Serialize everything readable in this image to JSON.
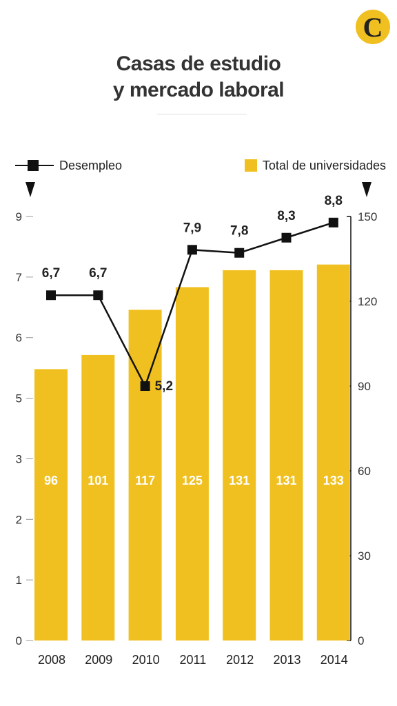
{
  "logo": {
    "letter": "C"
  },
  "title": {
    "line1": "Casas de estudio",
    "line2": "y mercado laboral"
  },
  "legend": {
    "line_label": "Desempleo",
    "bar_label": "Total de universidades"
  },
  "colors": {
    "bar": "#f0c020",
    "line": "#111111",
    "logo": "#f0c020"
  },
  "chart_data": {
    "type": "bar",
    "categories": [
      "2008",
      "2009",
      "2010",
      "2011",
      "2012",
      "2013",
      "2014"
    ],
    "series": [
      {
        "name": "Total de universidades",
        "type": "bar",
        "axis": "right",
        "values": [
          96,
          101,
          117,
          125,
          131,
          131,
          133
        ],
        "labels": [
          "96",
          "101",
          "117",
          "125",
          "131",
          "131",
          "133"
        ]
      },
      {
        "name": "Desempleo",
        "type": "line",
        "axis": "left",
        "values": [
          6.7,
          6.7,
          5.2,
          7.9,
          7.8,
          8.3,
          8.8
        ],
        "labels": [
          "6,7",
          "6,7",
          "5,2",
          "7,9",
          "7,8",
          "8,3",
          "8,8"
        ]
      }
    ],
    "y_left": {
      "ticks": [
        0,
        1,
        2,
        3,
        5,
        6,
        7,
        9
      ],
      "tick_positions": [
        0,
        1,
        2,
        3,
        4,
        5,
        6,
        7
      ]
    },
    "y_right": {
      "range": [
        0,
        150
      ],
      "ticks": [
        0,
        30,
        60,
        90,
        120,
        150
      ]
    },
    "grid": false,
    "legend_position": "top"
  }
}
